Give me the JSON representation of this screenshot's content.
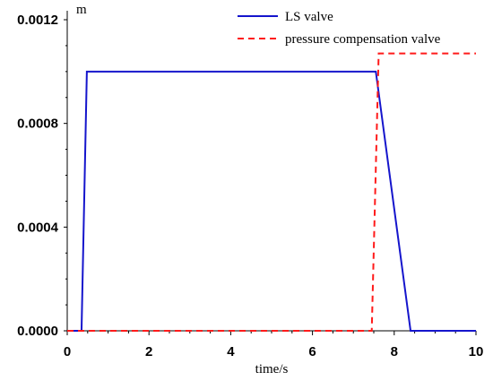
{
  "chart_data": {
    "type": "line",
    "title": "",
    "xlabel": "time/s",
    "ylabel": "m",
    "xlim": [
      0,
      10
    ],
    "ylim": [
      0,
      0.0012
    ],
    "x_ticks": [
      0,
      2,
      4,
      6,
      8,
      10
    ],
    "x_tick_labels": [
      "0",
      "2",
      "4",
      "6",
      "8",
      "10"
    ],
    "y_ticks": [
      0,
      0.0004,
      0.0008,
      0.0012
    ],
    "y_tick_labels": [
      "0.0000",
      "0.0004",
      "0.0008",
      "0.0012"
    ],
    "grid": false,
    "legend_position": "top-right",
    "series": [
      {
        "name": "LS valve",
        "color": "#1515cc",
        "style": "solid",
        "x": [
          0,
          0.35,
          0.48,
          7.55,
          8.4,
          10
        ],
        "y": [
          0,
          0,
          0.001,
          0.001,
          0,
          0
        ]
      },
      {
        "name": "pressure compensation valve",
        "color": "#ff1a1a",
        "style": "dashed",
        "x": [
          0,
          7.45,
          7.62,
          10
        ],
        "y": [
          0,
          0,
          0.00107,
          0.00107
        ]
      }
    ]
  }
}
